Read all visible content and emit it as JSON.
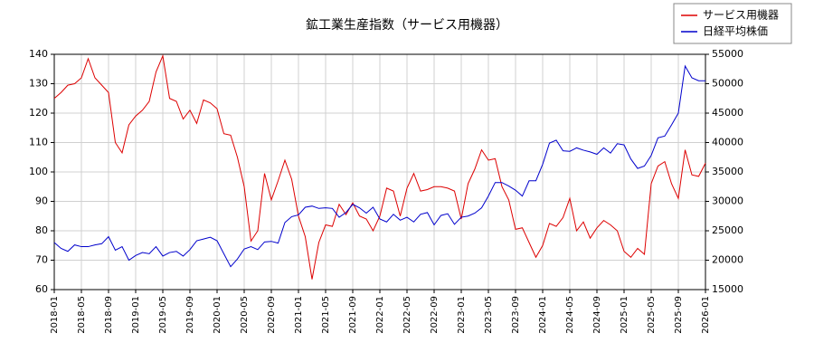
{
  "chart_data": {
    "type": "line",
    "title": "鉱工業生産指数（サービス用機器）",
    "x": [
      "2018-01",
      "2018-02",
      "2018-03",
      "2018-04",
      "2018-05",
      "2018-06",
      "2018-07",
      "2018-08",
      "2018-09",
      "2018-10",
      "2018-11",
      "2018-12",
      "2019-01",
      "2019-02",
      "2019-03",
      "2019-04",
      "2019-05",
      "2019-06",
      "2019-07",
      "2019-08",
      "2019-09",
      "2019-10",
      "2019-11",
      "2019-12",
      "2020-01",
      "2020-02",
      "2020-03",
      "2020-04",
      "2020-05",
      "2020-06",
      "2020-07",
      "2020-08",
      "2020-09",
      "2020-10",
      "2020-11",
      "2020-12",
      "2021-01",
      "2021-02",
      "2021-03",
      "2021-04",
      "2021-05",
      "2021-06",
      "2021-07",
      "2021-08",
      "2021-09",
      "2021-10",
      "2021-11",
      "2021-12",
      "2022-01",
      "2022-02",
      "2022-03",
      "2022-04",
      "2022-05",
      "2022-06",
      "2022-07",
      "2022-08",
      "2022-09",
      "2022-10",
      "2022-11",
      "2022-12",
      "2023-01",
      "2023-02",
      "2023-03",
      "2023-04",
      "2023-05",
      "2023-06",
      "2023-07",
      "2023-08",
      "2023-09",
      "2023-10",
      "2023-11",
      "2023-12",
      "2024-01",
      "2024-02",
      "2024-03",
      "2024-04",
      "2024-05",
      "2024-06",
      "2024-07",
      "2024-08",
      "2024-09",
      "2024-10",
      "2024-11",
      "2024-12",
      "2025-01",
      "2025-02",
      "2025-03",
      "2025-04",
      "2025-05",
      "2025-06",
      "2025-07",
      "2025-08",
      "2025-09",
      "2025-10",
      "2025-11",
      "2025-12",
      "2026-01"
    ],
    "xlim": [
      "2018-01",
      "2026-01"
    ],
    "xticks": [
      "2018-01",
      "2018-05",
      "2018-09",
      "2019-01",
      "2019-05",
      "2019-09",
      "2020-01",
      "2020-05",
      "2020-09",
      "2021-01",
      "2021-05",
      "2021-09",
      "2022-01",
      "2022-05",
      "2022-09",
      "2023-01",
      "2023-05",
      "2023-09",
      "2024-01",
      "2024-05",
      "2024-09",
      "2025-01",
      "2025-05",
      "2025-09",
      "2026-01"
    ],
    "ylim": [
      60,
      140
    ],
    "yticks": [
      60,
      70,
      80,
      90,
      100,
      110,
      120,
      130,
      140
    ],
    "y2lim": [
      15000,
      55000
    ],
    "y2ticks": [
      15000,
      20000,
      25000,
      30000,
      35000,
      40000,
      45000,
      50000,
      55000
    ],
    "grid": true,
    "legend": "upper right",
    "series": [
      {
        "name": "サービス用機器",
        "color": "#dd0000",
        "values": [
          125,
          127,
          129.5,
          130,
          132,
          138.5,
          132,
          129.5,
          127,
          110,
          106.5,
          116,
          119,
          121,
          124,
          134,
          139.5,
          125,
          124,
          118,
          121,
          116.5,
          124.5,
          123.5,
          121.5,
          113,
          112.5,
          105,
          95,
          76.5,
          80,
          99.5,
          90.5,
          97,
          104,
          97.5,
          85,
          78,
          63.5,
          76,
          82,
          81.5,
          89,
          85.5,
          89.5,
          85,
          84,
          80,
          85,
          94.5,
          93.5,
          85,
          94.5,
          99.5,
          93.5,
          94,
          95,
          95,
          94.5,
          93.5,
          84,
          96,
          101,
          107.5,
          104,
          104.5,
          95,
          90.5,
          80.5,
          81,
          76,
          71,
          75,
          82.5,
          81.5,
          84.5,
          91,
          80,
          83,
          77.5,
          81,
          83.5,
          82,
          80,
          73,
          71,
          74,
          72,
          96,
          102,
          103.5,
          96,
          91,
          107.5,
          99,
          98.5,
          103
        ]
      },
      {
        "name": "日経平均株価",
        "color": "#0000cc",
        "axis": "y2",
        "values": [
          23000,
          22000,
          21500,
          22600,
          22300,
          22300,
          22600,
          22800,
          24000,
          21700,
          22300,
          20000,
          20800,
          21300,
          21100,
          22300,
          20700,
          21300,
          21500,
          20700,
          21800,
          23300,
          23600,
          23900,
          23300,
          21100,
          18900,
          20200,
          21900,
          22300,
          21800,
          23100,
          23200,
          22900,
          26400,
          27400,
          27700,
          29000,
          29200,
          28800,
          28900,
          28800,
          27300,
          28100,
          29500,
          28900,
          28000,
          29000,
          27000,
          26500,
          27800,
          26800,
          27300,
          26500,
          27800,
          28100,
          26000,
          27600,
          27900,
          26100,
          27300,
          27500,
          28000,
          28900,
          30900,
          33200,
          33200,
          32600,
          31900,
          30900,
          33500,
          33500,
          36300,
          39900,
          40400,
          38600,
          38500,
          39100,
          38700,
          38400,
          38000,
          39100,
          38200,
          39800,
          39600,
          37200,
          35600,
          36000,
          37800,
          40800,
          41100,
          43000,
          45000,
          53000,
          51000,
          50500,
          50500
        ]
      }
    ]
  }
}
